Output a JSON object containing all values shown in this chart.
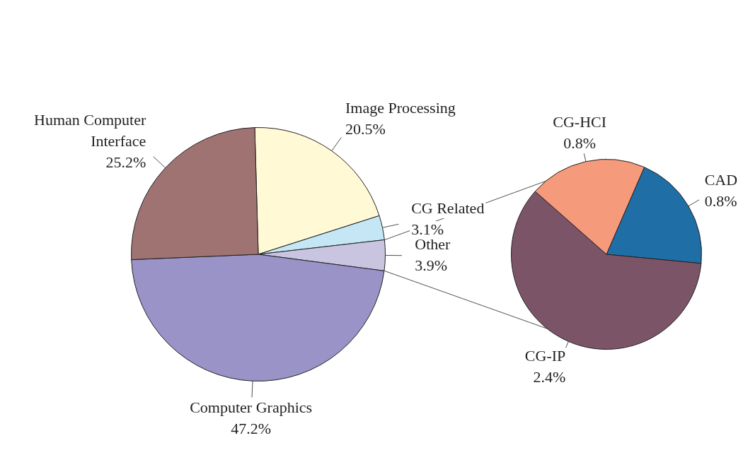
{
  "chart_data": [
    {
      "type": "pie",
      "categories": [
        "Image Processing",
        "CG Related",
        "Other",
        "Computer Graphics",
        "Human Computer Interface"
      ],
      "values": [
        20.5,
        3.1,
        3.9,
        47.2,
        25.2
      ],
      "value_labels": [
        "20.5%",
        "3.1%",
        "3.9%",
        "47.2%",
        "25.2%"
      ],
      "colors": [
        "#fff9d6",
        "#c4e6f5",
        "#c9c5e1",
        "#9a93c8",
        "#a07373"
      ],
      "legend": false
    },
    {
      "type": "pie",
      "categories": [
        "CAD",
        "CG-IP",
        "CG-HCI"
      ],
      "values": [
        0.8,
        2.4,
        0.8
      ],
      "value_labels": [
        "0.8%",
        "2.4%",
        "0.8%"
      ],
      "colors": [
        "#1f6ea6",
        "#7c5468",
        "#f59a7b"
      ],
      "legend": false
    }
  ]
}
